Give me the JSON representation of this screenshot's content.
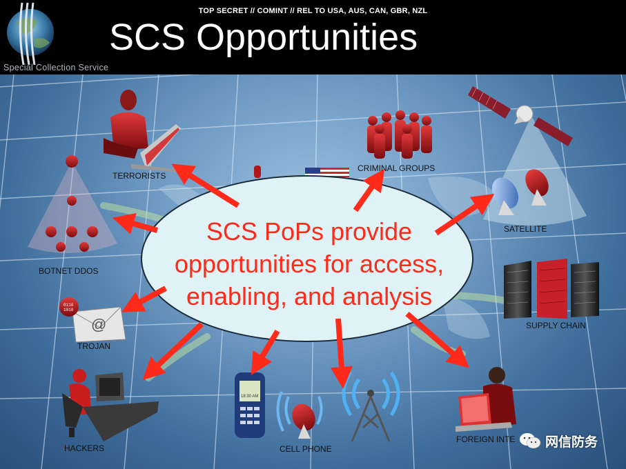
{
  "header": {
    "classification": "TOP SECRET // COMINT // REL TO USA, AUS, CAN, GBR, NZL",
    "title": "SCS Opportunities",
    "logo_text": "Special Collection Service"
  },
  "center": {
    "lines": [
      "SCS PoPs provide",
      "opportunities for access,",
      "enabling, and analysis"
    ]
  },
  "nodes": {
    "terrorists": "TERRORISTS",
    "criminal_groups": "CRIMINAL GROUPS",
    "satellite": "SATELLITE",
    "botnet": "BOTNET DDOS",
    "supply_chain": "SUPPLY CHAIN",
    "trojan": "TROJAN",
    "hackers": "HACKERS",
    "cell_phone": "CELL PHONE",
    "foreign_intel": "FOREIGN INTE"
  },
  "phone_screen": {
    "line1": "18:30 AM"
  },
  "watermark": "网信防务",
  "colors": {
    "arrow": "#ff2a1a",
    "ellipse_fill": "#dff2f5",
    "figure_red": "#b0171b"
  }
}
